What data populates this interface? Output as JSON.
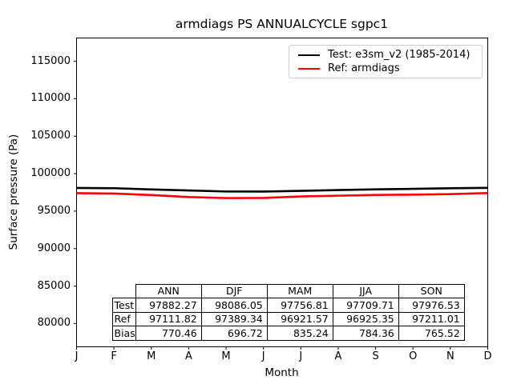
{
  "figure": {
    "title": "armdiags PS ANNUALCYCLE sgpc1"
  },
  "chart_data": {
    "type": "line",
    "title": "armdiags PS ANNUALCYCLE sgpc1",
    "xlabel": "Month",
    "ylabel": "Surface pressure (Pa)",
    "x": [
      1,
      2,
      3,
      4,
      5,
      6,
      7,
      8,
      9,
      10,
      11,
      12
    ],
    "x_tick_labels": [
      "J",
      "F",
      "M",
      "A",
      "M",
      "J",
      "J",
      "A",
      "S",
      "O",
      "N",
      "D"
    ],
    "y_ticks": [
      80000,
      85000,
      90000,
      95000,
      100000,
      105000,
      110000,
      115000
    ],
    "ylim": [
      76900,
      118100
    ],
    "xlim": [
      1,
      12
    ],
    "grid": false,
    "legend_position": "upper-right",
    "series": [
      {
        "name": "Test: e3sm_v2 (1985-2014)",
        "color": "#000000",
        "values": [
          98090,
          98060,
          97890,
          97760,
          97620,
          97610,
          97710,
          97810,
          97910,
          97970,
          98050,
          98110
        ]
      },
      {
        "name": "Ref: armdiags",
        "color": "#ff0000",
        "values": [
          97400,
          97350,
          97150,
          96880,
          96740,
          96760,
          96960,
          97060,
          97160,
          97200,
          97270,
          97420
        ]
      }
    ]
  },
  "stats_table": {
    "columns": [
      "ANN",
      "DJF",
      "MAM",
      "JJA",
      "SON"
    ],
    "rows": [
      {
        "label": "Test",
        "values": [
          "97882.27",
          "98086.05",
          "97756.81",
          "97709.71",
          "97976.53"
        ]
      },
      {
        "label": "Ref",
        "values": [
          "97111.82",
          "97389.34",
          "96921.57",
          "96925.35",
          "97211.01"
        ]
      },
      {
        "label": "Bias",
        "values": [
          "770.46",
          "696.72",
          "835.24",
          "784.36",
          "765.52"
        ]
      }
    ]
  }
}
